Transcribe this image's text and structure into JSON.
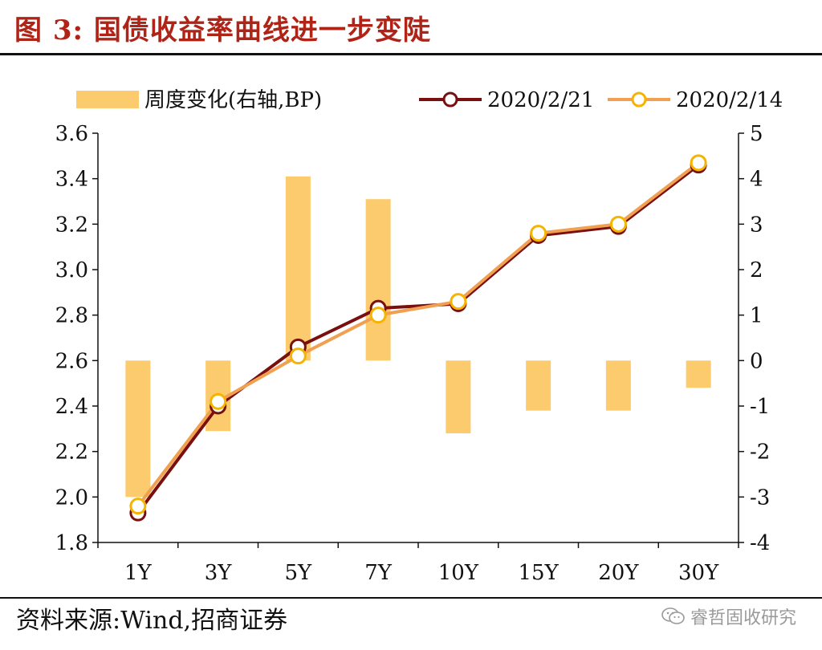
{
  "figure": {
    "title": "图 3:  国债收益率曲线进一步变陡",
    "source": "资料来源:Wind,招商证券",
    "watermark": "睿哲固收研究"
  },
  "colors": {
    "bar": "#fbcb6e",
    "series_current": "#7a0f0f",
    "series_previous": "#f0a050",
    "title": "#b02418"
  },
  "chart_data": {
    "type": "bar+line",
    "categories": [
      "1Y",
      "3Y",
      "5Y",
      "7Y",
      "10Y",
      "15Y",
      "20Y",
      "30Y"
    ],
    "legend": [
      "周度变化(右轴,BP)",
      "2020/2/21",
      "2020/2/14"
    ],
    "legend_position": "top",
    "y_left": {
      "min": 1.8,
      "max": 3.6,
      "step": 0.2,
      "ticks": [
        "1.8",
        "2.0",
        "2.2",
        "2.4",
        "2.6",
        "2.8",
        "3.0",
        "3.2",
        "3.4",
        "3.6"
      ]
    },
    "y_right": {
      "min": -4,
      "max": 5,
      "step": 1,
      "ticks": [
        "-4",
        "-3",
        "-2",
        "-1",
        "0",
        "1",
        "2",
        "3",
        "4",
        "5"
      ]
    },
    "bars": {
      "name": "周度变化(右轴,BP)",
      "axis": "right",
      "values": [
        -3.0,
        -1.55,
        4.05,
        3.55,
        -1.6,
        -1.1,
        -1.1,
        -0.6
      ]
    },
    "series": [
      {
        "name": "2020/2/21",
        "axis": "left",
        "values": [
          1.93,
          2.4,
          2.66,
          2.83,
          2.85,
          3.15,
          3.19,
          3.46
        ]
      },
      {
        "name": "2020/2/14",
        "axis": "left",
        "values": [
          1.96,
          2.42,
          2.62,
          2.8,
          2.86,
          3.16,
          3.2,
          3.47
        ]
      }
    ],
    "grid": false
  }
}
